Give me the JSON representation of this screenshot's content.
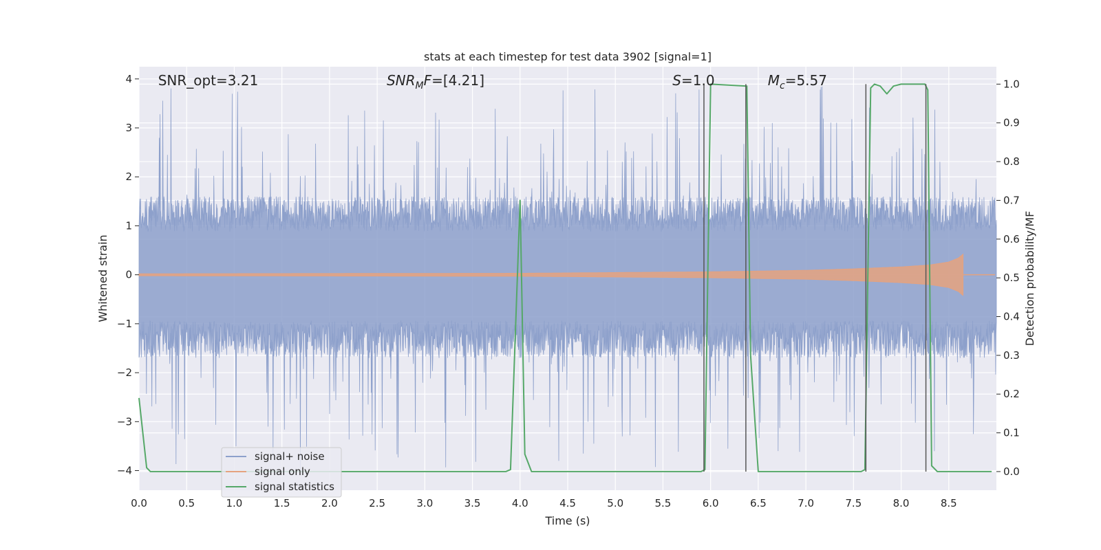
{
  "chart_data": {
    "type": "line",
    "title": "stats at each timestep for test data 3902 [signal=1]",
    "xlabel": "Time (s)",
    "ylabel": "Whitened strain",
    "y2label": "Detection probability/MF",
    "xlim": [
      0.0,
      9.0
    ],
    "ylim": [
      -4.4,
      4.25
    ],
    "y2lim": [
      -0.048,
      1.045
    ],
    "xticks": [
      0.0,
      0.5,
      1.0,
      1.5,
      2.0,
      2.5,
      3.0,
      3.5,
      4.0,
      4.5,
      5.0,
      5.5,
      6.0,
      6.5,
      7.0,
      7.5,
      8.0,
      8.5
    ],
    "xtick_labels": [
      "0.0",
      "0.5",
      "1.0",
      "1.5",
      "2.0",
      "2.5",
      "3.0",
      "3.5",
      "4.0",
      "4.5",
      "5.0",
      "5.5",
      "6.0",
      "6.5",
      "7.0",
      "7.5",
      "8.0",
      "8.5"
    ],
    "yticks": [
      4,
      3,
      2,
      1,
      0,
      -1,
      -2,
      -3,
      -4
    ],
    "ytick_labels": [
      "4",
      "3",
      "2",
      "1",
      "0",
      "−1",
      "−2",
      "−3",
      "−4"
    ],
    "y2ticks": [
      1.0,
      0.9,
      0.8,
      0.7,
      0.6,
      0.5,
      0.4,
      0.3,
      0.2,
      0.1,
      0.0
    ],
    "y2tick_labels": [
      "1.0",
      "0.9",
      "0.8",
      "0.7",
      "0.6",
      "0.5",
      "0.4",
      "0.3",
      "0.2",
      "0.1",
      "0.0"
    ],
    "grid": true,
    "legend_position": "lower-left",
    "annotations": [
      {
        "label": "SNR_opt=3.21",
        "x": 0.2
      },
      {
        "base": "SNR",
        "sub": "M",
        "tail": "F",
        "value": "=[4.21]",
        "x": 2.6
      },
      {
        "base": "S",
        "value": "=1.0",
        "x": 5.6
      },
      {
        "base": "M",
        "sub": "c",
        "value": "=5.57",
        "x": 6.6
      }
    ],
    "series": [
      {
        "name": "signal+ noise",
        "axis": "left",
        "color": "#8da0cb",
        "description": "whitened noisy strain, amplitude envelope roughly ±1.2 with peaks near ±3.8",
        "x_range": [
          0.0,
          9.0
        ],
        "envelope": {
          "typical_min": -1.7,
          "typical_max": 1.6,
          "peak_max": 3.85,
          "peak_min": -4.0
        }
      },
      {
        "name": "signal only",
        "axis": "left",
        "color": "#e5a27f",
        "description": "chirp waveform growing toward merger near 8.65 s",
        "x_range": [
          0.0,
          8.65
        ],
        "amplitude_points": [
          [
            0.0,
            0.02
          ],
          [
            4.0,
            0.03
          ],
          [
            6.0,
            0.06
          ],
          [
            7.0,
            0.09
          ],
          [
            7.5,
            0.12
          ],
          [
            8.0,
            0.16
          ],
          [
            8.3,
            0.2
          ],
          [
            8.5,
            0.26
          ],
          [
            8.6,
            0.34
          ],
          [
            8.65,
            0.42
          ]
        ]
      },
      {
        "name": "signal statistics",
        "axis": "right",
        "color": "#55a868",
        "x": [
          0.0,
          0.08,
          0.12,
          0.2,
          3.5,
          3.85,
          3.9,
          4.0,
          4.05,
          4.12,
          5.5,
          5.9,
          5.94,
          6.0,
          6.38,
          6.42,
          6.5,
          7.0,
          7.58,
          7.62,
          7.68,
          7.72,
          7.78,
          7.85,
          7.92,
          8.0,
          8.25,
          8.28,
          8.32,
          8.38,
          8.95
        ],
        "y": [
          0.19,
          0.01,
          0.0,
          0.0,
          0.0,
          0.0,
          0.005,
          0.7,
          0.045,
          0.0,
          0.0,
          0.0,
          0.005,
          1.0,
          0.995,
          0.3,
          0.0,
          0.0,
          0.0,
          0.005,
          0.99,
          1.0,
          0.995,
          0.975,
          0.995,
          1.0,
          1.0,
          0.985,
          0.015,
          0.0,
          0.0
        ]
      }
    ],
    "vlines": [
      {
        "x": 5.93,
        "color": "#555555"
      },
      {
        "x": 6.37,
        "color": "#555555"
      },
      {
        "x": 7.63,
        "color": "#555555"
      },
      {
        "x": 8.26,
        "color": "#555555"
      }
    ]
  }
}
